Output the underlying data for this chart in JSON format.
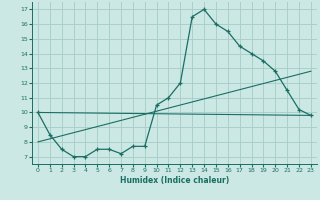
{
  "xlabel": "Humidex (Indice chaleur)",
  "bg_color": "#cce8e4",
  "grid_color": "#aacfca",
  "line_color": "#1a6e64",
  "xlim": [
    -0.5,
    23.5
  ],
  "ylim": [
    6.5,
    17.5
  ],
  "xticks": [
    0,
    1,
    2,
    3,
    4,
    5,
    6,
    7,
    8,
    9,
    10,
    11,
    12,
    13,
    14,
    15,
    16,
    17,
    18,
    19,
    20,
    21,
    22,
    23
  ],
  "yticks": [
    7,
    8,
    9,
    10,
    11,
    12,
    13,
    14,
    15,
    16,
    17
  ],
  "series1_x": [
    0,
    1,
    2,
    3,
    4,
    5,
    6,
    7,
    8,
    9,
    10,
    11,
    12,
    13,
    14,
    15,
    16,
    17,
    18,
    19,
    20,
    21,
    22,
    23
  ],
  "series1_y": [
    10.0,
    8.5,
    7.5,
    7.0,
    7.0,
    7.5,
    7.5,
    7.2,
    7.7,
    7.7,
    10.5,
    11.0,
    12.0,
    16.5,
    17.0,
    16.0,
    15.5,
    14.5,
    14.0,
    13.5,
    12.8,
    11.5,
    10.2,
    9.8
  ],
  "series2_x": [
    0,
    23
  ],
  "series2_y": [
    10.0,
    9.8
  ],
  "series3_x": [
    0,
    23
  ],
  "series3_y": [
    8.0,
    12.8
  ]
}
